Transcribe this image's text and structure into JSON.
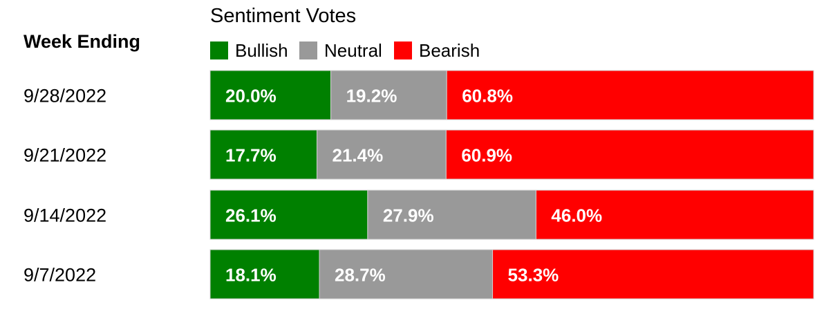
{
  "chart_data": {
    "type": "bar",
    "orientation": "horizontal",
    "stacked": true,
    "title": "Sentiment Votes",
    "row_header": "Week Ending",
    "categories": [
      "9/28/2022",
      "9/21/2022",
      "9/14/2022",
      "9/7/2022"
    ],
    "series": [
      {
        "name": "Bullish",
        "color": "#008000",
        "values": [
          20.0,
          17.7,
          26.1,
          18.1
        ],
        "labels": [
          "20.0%",
          "17.7%",
          "26.1%",
          "18.1%"
        ]
      },
      {
        "name": "Neutral",
        "color": "#999999",
        "values": [
          19.2,
          21.4,
          27.9,
          28.7
        ],
        "labels": [
          "19.2%",
          "21.4%",
          "27.9%",
          "28.7%"
        ]
      },
      {
        "name": "Bearish",
        "color": "#ff0000",
        "values": [
          60.8,
          60.9,
          46.0,
          53.3
        ],
        "labels": [
          "60.8%",
          "60.9%",
          "46.0%",
          "53.3%"
        ]
      }
    ],
    "xlim": [
      0,
      100
    ],
    "unit": "%",
    "grid": false,
    "legend_position": "top"
  }
}
